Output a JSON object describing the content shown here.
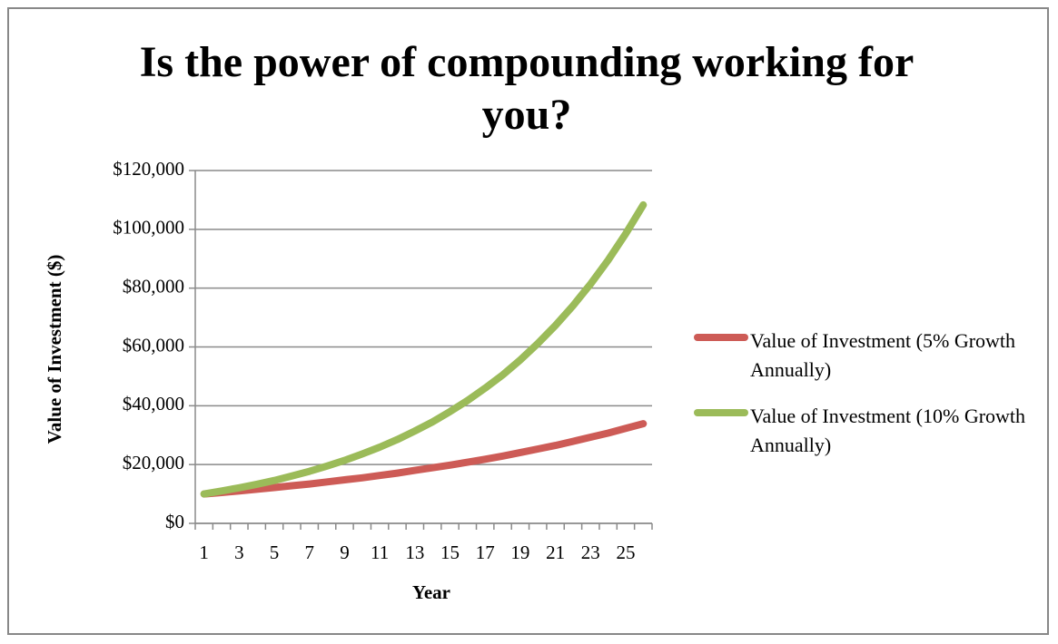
{
  "chart_data": {
    "type": "line",
    "title": "Is the power of compounding working for you?",
    "x_label": "Year",
    "y_label": "Value of Investment ($)",
    "categories": [
      1,
      null,
      3,
      null,
      5,
      null,
      7,
      null,
      9,
      null,
      11,
      null,
      13,
      null,
      15,
      null,
      17,
      null,
      19,
      null,
      21,
      null,
      23,
      null,
      25,
      null
    ],
    "series": [
      {
        "name": "Value of Investment (5% Growth Annually)",
        "color": "#cd5b56",
        "values": [
          10000,
          10500,
          11000,
          11600,
          12200,
          12800,
          13400,
          14100,
          14800,
          15500,
          16300,
          17100,
          18000,
          18900,
          19800,
          20800,
          21800,
          22900,
          24100,
          25300,
          26500,
          27900,
          29300,
          30700,
          32300,
          33900
        ]
      },
      {
        "name": "Value of Investment (10% Growth Annually)",
        "color": "#9bbb59",
        "values": [
          10000,
          11000,
          12100,
          13300,
          14600,
          16100,
          17700,
          19500,
          21400,
          23600,
          25900,
          28500,
          31400,
          34500,
          38000,
          41800,
          46000,
          50500,
          55600,
          61200,
          67300,
          74000,
          81400,
          89500,
          98500,
          108300
        ]
      }
    ],
    "ylim": [
      0,
      120000
    ],
    "yticks": [
      {
        "value": 0,
        "label": "$0"
      },
      {
        "value": 20000,
        "label": "$20,000"
      },
      {
        "value": 40000,
        "label": "$40,000"
      },
      {
        "value": 60000,
        "label": "$60,000"
      },
      {
        "value": 80000,
        "label": "$80,000"
      },
      {
        "value": 100000,
        "label": "$100,000"
      },
      {
        "value": 120000,
        "label": "$120,000"
      }
    ],
    "grid": true,
    "legend": "right"
  }
}
